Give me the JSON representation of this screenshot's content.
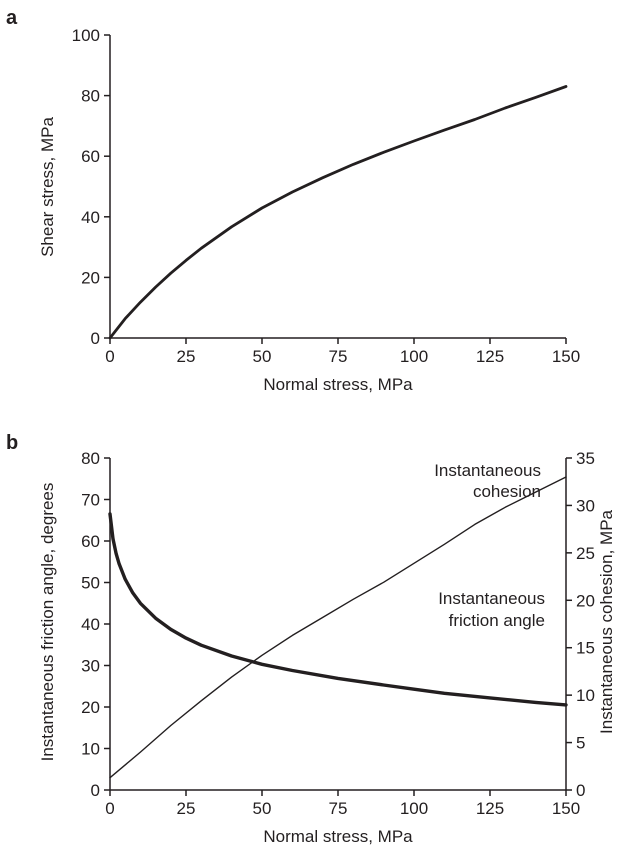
{
  "chart_data": [
    {
      "panel": "a",
      "type": "line",
      "xlabel": "Normal stress, MPa",
      "ylabel": "Shear stress, MPa",
      "xlim": [
        0,
        150
      ],
      "ylim": [
        0,
        100
      ],
      "xticks": [
        "0",
        "25",
        "50",
        "75",
        "100",
        "125",
        "150"
      ],
      "yticks": [
        "0",
        "20",
        "40",
        "60",
        "80",
        "100"
      ],
      "grid": false,
      "series": [
        {
          "x": [
            0,
            5,
            10,
            15,
            20,
            25,
            30,
            40,
            50,
            60,
            70,
            80,
            90,
            100,
            110,
            120,
            130,
            140,
            150
          ],
          "y": [
            0,
            6.4,
            11.8,
            16.8,
            21.4,
            25.6,
            29.6,
            36.7,
            42.9,
            48.2,
            52.9,
            57.3,
            61.3,
            65.0,
            68.6,
            72.1,
            75.9,
            79.4,
            83.0
          ]
        }
      ]
    },
    {
      "panel": "b",
      "type": "line",
      "xlabel": "Normal stress, MPa",
      "ylabel": "Instantaneous friction angle, degrees",
      "ylabel_right": "Instantaneous cohesion, MPa",
      "xlim": [
        0,
        150
      ],
      "ylim": [
        0,
        80
      ],
      "ylim_right": [
        0,
        35
      ],
      "xticks": [
        "0",
        "25",
        "50",
        "75",
        "100",
        "125",
        "150"
      ],
      "yticks": [
        "0",
        "10",
        "20",
        "30",
        "40",
        "50",
        "60",
        "70",
        "80"
      ],
      "yticks_right": [
        "0",
        "5",
        "10",
        "15",
        "20",
        "25",
        "30",
        "35"
      ],
      "grid": false,
      "annotations": [
        {
          "line1": "Instantaneous",
          "line2": "cohesion"
        },
        {
          "line1": "Instantaneous",
          "line2": "friction angle"
        }
      ],
      "series": [
        {
          "axis": "left",
          "style": "thick",
          "x": [
            0,
            1,
            2,
            3,
            5,
            7.5,
            10,
            15,
            20,
            25,
            30,
            40,
            50,
            60,
            75,
            90,
            100,
            110,
            125,
            140,
            150
          ],
          "y": [
            66.5,
            60.5,
            57.0,
            54.5,
            50.8,
            47.5,
            45.0,
            41.4,
            38.7,
            36.6,
            34.9,
            32.3,
            30.3,
            28.8,
            26.9,
            25.3,
            24.3,
            23.3,
            22.2,
            21.1,
            20.5
          ]
        },
        {
          "axis": "right",
          "style": "thin",
          "x": [
            0,
            10,
            20,
            30,
            40,
            50,
            60,
            70,
            80,
            90,
            100,
            110,
            120,
            130,
            140,
            150
          ],
          "y": [
            1.3,
            4.0,
            6.8,
            9.4,
            11.9,
            14.2,
            16.3,
            18.2,
            20.1,
            21.9,
            23.9,
            25.9,
            28.0,
            29.8,
            31.4,
            33.0
          ]
        }
      ]
    }
  ]
}
